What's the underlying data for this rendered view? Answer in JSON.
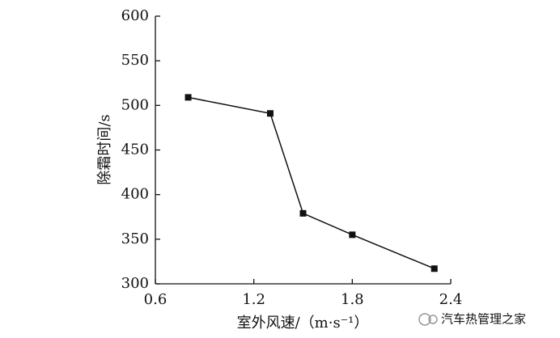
{
  "chart_data": {
    "type": "line",
    "x_label": "室外风速/（m·s⁻¹）",
    "y_label": "除霜时间/s",
    "x": [
      0.8,
      1.3,
      1.5,
      1.8,
      2.3
    ],
    "series": [
      {
        "color": "#111111",
        "values": [
          509,
          491,
          379,
          355,
          317
        ]
      }
    ],
    "xlim": [
      0.6,
      2.4
    ],
    "xticks": [
      0.6,
      1.2,
      1.8,
      2.4
    ],
    "ylim": [
      300,
      600
    ],
    "yticks": [
      300,
      350,
      400,
      450,
      500,
      550,
      600
    ],
    "grid": false
  },
  "watermark": "汽车热管理之家"
}
